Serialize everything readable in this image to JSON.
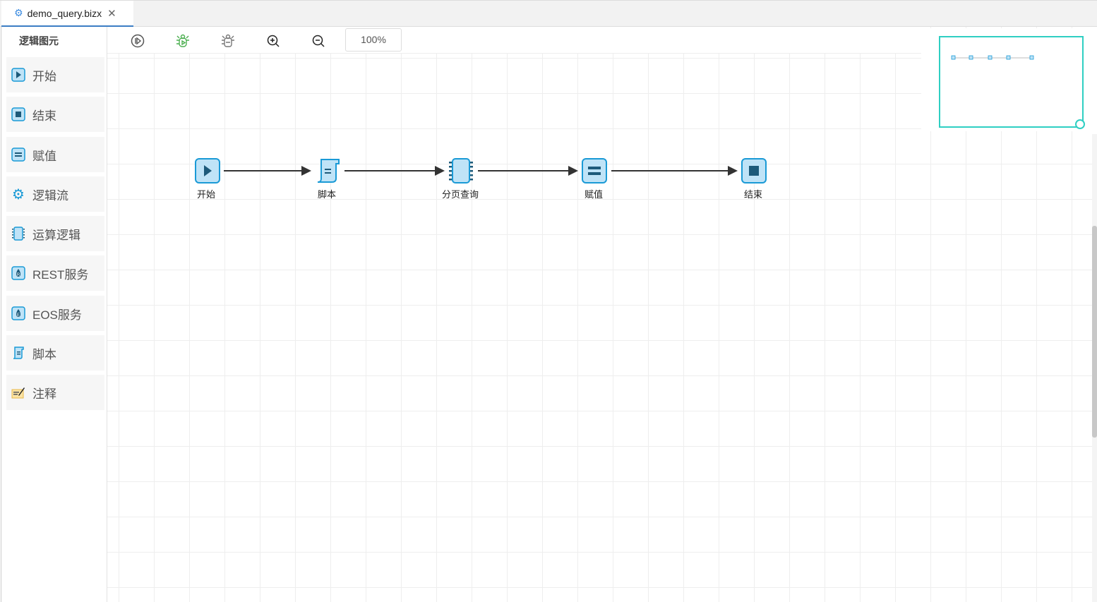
{
  "tab": {
    "title": "demo_query.bizx",
    "icon": "gear-icon"
  },
  "sidebar": {
    "title": "逻辑图元",
    "items": [
      {
        "label": "开始",
        "icon": "play-icon"
      },
      {
        "label": "结束",
        "icon": "stop-icon"
      },
      {
        "label": "赋值",
        "icon": "equals-icon"
      },
      {
        "label": "逻辑流",
        "icon": "gear-icon"
      },
      {
        "label": "运算逻辑",
        "icon": "chip-icon"
      },
      {
        "label": "REST服务",
        "icon": "rest-service-icon"
      },
      {
        "label": "EOS服务",
        "icon": "eos-service-icon"
      },
      {
        "label": "脚本",
        "icon": "script-icon"
      },
      {
        "label": "注释",
        "icon": "note-icon"
      }
    ]
  },
  "toolbar": {
    "zoom": "100%"
  },
  "flow": {
    "nodes": [
      {
        "label": "开始",
        "icon": "play-icon"
      },
      {
        "label": "脚本",
        "icon": "script-icon"
      },
      {
        "label": "分页查询",
        "icon": "chip-icon"
      },
      {
        "label": "赋值",
        "icon": "equals-icon"
      },
      {
        "label": "结束",
        "icon": "stop-icon"
      }
    ]
  },
  "colors": {
    "accent": "#3b7dc4",
    "node_fill": "#bfe3f7",
    "node_border": "#1a9ad6",
    "minimap": "#2fcfc3"
  }
}
